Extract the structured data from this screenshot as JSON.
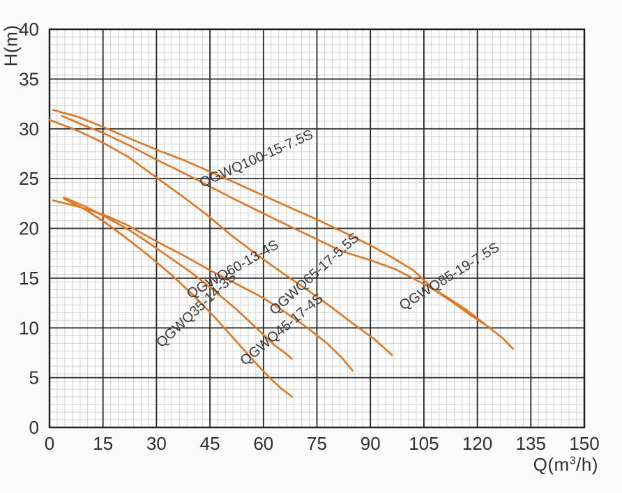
{
  "axes": {
    "y_title": "H(m)",
    "x_title_prefix": "Q(m",
    "x_title_sup": "3",
    "x_title_suffix": "/h)"
  },
  "style": {
    "curve_color": "#e5761e",
    "major_grid_color": "#262626",
    "minor_grid_color": "#cfcfcf",
    "border_color": "#1f1f1f",
    "tick_text_color": "#2e2e2e",
    "curve_label_color": "#3a3a3a",
    "plot_background": "#ffffff"
  },
  "chart_data": {
    "type": "line",
    "title": "",
    "xlabel": "Q(m3/h)",
    "ylabel": "H(m)",
    "xlim": [
      0,
      150
    ],
    "ylim": [
      0,
      40
    ],
    "x_ticks": [
      0,
      15,
      30,
      45,
      60,
      75,
      90,
      105,
      120,
      135,
      150
    ],
    "y_ticks": [
      0,
      5,
      10,
      15,
      20,
      25,
      30,
      35,
      40
    ],
    "grid": {
      "major": true,
      "minor": true
    },
    "legend_position": "labels-on-curves",
    "series": [
      {
        "name": "QGWQ100-15-7.5S",
        "points": [
          [
            1,
            31.9
          ],
          [
            8,
            31.2
          ],
          [
            15,
            30.2
          ],
          [
            22,
            29.1
          ],
          [
            30,
            27.9
          ],
          [
            38,
            26.8
          ],
          [
            45,
            25.7
          ],
          [
            52,
            24.6
          ],
          [
            60,
            23.3
          ],
          [
            68,
            22.0
          ],
          [
            75,
            20.9
          ],
          [
            82,
            19.7
          ],
          [
            90,
            18.3
          ],
          [
            96,
            17.1
          ],
          [
            102,
            15.8
          ],
          [
            108,
            13.8
          ],
          [
            113,
            12.6
          ],
          [
            118,
            11.3
          ],
          [
            121,
            10.6
          ],
          [
            124,
            9.9
          ]
        ],
        "label": {
          "q": 58.5,
          "h": 26.6,
          "angle": -24
        }
      },
      {
        "name": "QGWQ85-19-7.5S",
        "points": [
          [
            3.5,
            31.3
          ],
          [
            10,
            30.3
          ],
          [
            15,
            29.6
          ],
          [
            22,
            28.4
          ],
          [
            30,
            26.9
          ],
          [
            38,
            25.5
          ],
          [
            45,
            24.2
          ],
          [
            52,
            22.9
          ],
          [
            60,
            21.5
          ],
          [
            68,
            20.1
          ],
          [
            75,
            18.9
          ],
          [
            82,
            17.7
          ],
          [
            90,
            16.8
          ],
          [
            97,
            15.9
          ],
          [
            104,
            14.6
          ],
          [
            111,
            13.2
          ],
          [
            117,
            11.8
          ],
          [
            122,
            10.4
          ],
          [
            127,
            9.0
          ],
          [
            130,
            7.9
          ]
        ],
        "label": {
          "q": 112.8,
          "h": 14.8,
          "angle": -32
        }
      },
      {
        "name": "QGWQ65-17-5.5S",
        "points": [
          [
            0,
            30.9
          ],
          [
            8,
            29.8
          ],
          [
            15,
            28.6
          ],
          [
            22,
            27.2
          ],
          [
            30,
            25.1
          ],
          [
            37,
            23.3
          ],
          [
            44,
            21.4
          ],
          [
            51,
            19.3
          ],
          [
            58,
            17.4
          ],
          [
            65,
            15.6
          ],
          [
            72,
            13.9
          ],
          [
            79,
            12.1
          ],
          [
            86,
            10.2
          ],
          [
            91,
            8.9
          ],
          [
            96,
            7.3
          ]
        ],
        "label": {
          "q": 75.1,
          "h": 15.1,
          "angle": -42
        }
      },
      {
        "name": "QGWQ60-13-4S",
        "points": [
          [
            1,
            22.8
          ],
          [
            8,
            22.2
          ],
          [
            15,
            21.4
          ],
          [
            22,
            20.3
          ],
          [
            30,
            18.7
          ],
          [
            38,
            17.2
          ],
          [
            45,
            15.8
          ],
          [
            52,
            14.5
          ],
          [
            60,
            13.0
          ],
          [
            66,
            11.6
          ],
          [
            72,
            10.1
          ],
          [
            78,
            8.4
          ],
          [
            82,
            7.0
          ],
          [
            85,
            5.7
          ]
        ],
        "label": {
          "q": 52.0,
          "h": 15.5,
          "angle": -30
        }
      },
      {
        "name": "QGWQ45-17-4S",
        "points": [
          [
            4,
            23.1
          ],
          [
            10,
            22.2
          ],
          [
            16,
            21.1
          ],
          [
            22,
            19.9
          ],
          [
            28,
            18.5
          ],
          [
            34,
            17.0
          ],
          [
            40,
            15.5
          ],
          [
            46,
            13.8
          ],
          [
            52,
            12.0
          ],
          [
            58,
            10.0
          ],
          [
            63,
            8.3
          ],
          [
            66,
            7.5
          ],
          [
            68,
            6.9
          ]
        ],
        "label": {
          "q": 65.9,
          "h": 9.5,
          "angle": -40
        }
      },
      {
        "name": "QGWQ35-14-3S",
        "points": [
          [
            4,
            23.0
          ],
          [
            10,
            21.9
          ],
          [
            16,
            20.5
          ],
          [
            22,
            18.9
          ],
          [
            28,
            17.2
          ],
          [
            34,
            15.4
          ],
          [
            40,
            13.4
          ],
          [
            46,
            11.2
          ],
          [
            52,
            8.8
          ],
          [
            58,
            6.4
          ],
          [
            62,
            4.9
          ],
          [
            65,
            3.9
          ],
          [
            68,
            3.1
          ]
        ],
        "label": {
          "q": 42.0,
          "h": 11.5,
          "angle": -43
        }
      }
    ]
  }
}
